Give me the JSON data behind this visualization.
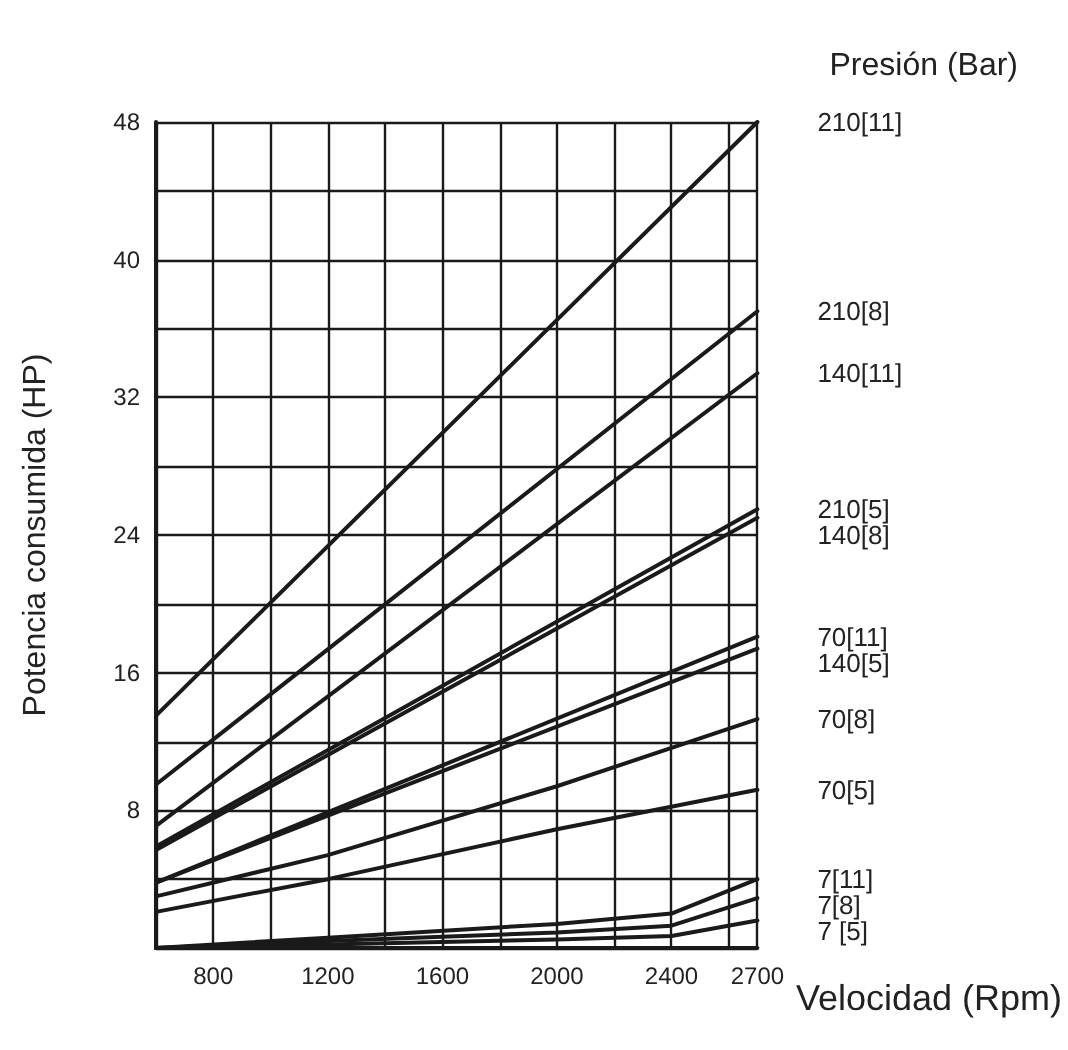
{
  "chart_data": {
    "type": "line",
    "xlabel": "Velocidad (Rpm)",
    "ylabel": "Potencia consumida (HP)",
    "legend_title": "Presión (Bar)",
    "xlim": [
      600,
      2700
    ],
    "ylim": [
      0,
      48
    ],
    "xticks": [
      {
        "value": 600,
        "label": null
      },
      800,
      {
        "value": 1000,
        "label": null
      },
      1200,
      {
        "value": 1400,
        "label": null
      },
      1600,
      {
        "value": 1800,
        "label": null
      },
      2000,
      {
        "value": 2200,
        "label": null
      },
      2400,
      {
        "value": 2600,
        "label": null
      },
      2700
    ],
    "yticks": [
      {
        "value": 0,
        "label": null
      },
      {
        "value": 4,
        "label": null
      },
      8,
      {
        "value": 12,
        "label": null
      },
      16,
      {
        "value": 20,
        "label": null
      },
      24,
      {
        "value": 28,
        "label": null
      },
      32,
      {
        "value": 36,
        "label": null
      },
      40,
      {
        "value": 44,
        "label": null
      },
      48
    ],
    "grid": true,
    "marker": "none",
    "line_style": "solid",
    "series": [
      {
        "name": "210[11]",
        "color": "#1a1a1a",
        "x": [
          600,
          2700
        ],
        "values": [
          13.5,
          48
        ]
      },
      {
        "name": "210[8]",
        "color": "#1a1a1a",
        "x": [
          600,
          2700
        ],
        "values": [
          9.5,
          37
        ]
      },
      {
        "name": "140[11]",
        "color": "#1a1a1a",
        "x": [
          600,
          2700
        ],
        "values": [
          7.1,
          33.4
        ]
      },
      {
        "name": "210[5]",
        "color": "#1a1a1a",
        "x": [
          600,
          2700
        ],
        "values": [
          5.9,
          25.5
        ]
      },
      {
        "name": "140[8]",
        "color": "#1a1a1a",
        "x": [
          600,
          2700
        ],
        "values": [
          5.7,
          25
        ]
      },
      {
        "name": "70[11]",
        "color": "#1a1a1a",
        "x": [
          600,
          2700
        ],
        "values": [
          3.8,
          18.1
        ]
      },
      {
        "name": "140[5]",
        "color": "#1a1a1a",
        "x": [
          600,
          2700
        ],
        "values": [
          3.8,
          17.4
        ]
      },
      {
        "name": "70[8]",
        "color": "#1a1a1a",
        "x": [
          600,
          1200,
          2000,
          2700
        ],
        "values": [
          3.0,
          5.4,
          9.4,
          13.3
        ]
      },
      {
        "name": "70[5]",
        "color": "#1a1a1a",
        "x": [
          600,
          1200,
          2000,
          2700
        ],
        "values": [
          2.1,
          4.0,
          6.9,
          9.2
        ]
      },
      {
        "name": "7[11]",
        "color": "#1a1a1a",
        "x": [
          600,
          1200,
          2000,
          2400,
          2700
        ],
        "values": [
          0,
          0.6,
          1.4,
          2.0,
          4.0
        ]
      },
      {
        "name": "7[8]",
        "color": "#1a1a1a",
        "x": [
          600,
          1200,
          2000,
          2400,
          2700
        ],
        "values": [
          0,
          0.4,
          0.9,
          1.3,
          2.9
        ]
      },
      {
        "name": "7 [5]",
        "color": "#1a1a1a",
        "x": [
          600,
          1200,
          2000,
          2400,
          2700
        ],
        "values": [
          0,
          0.2,
          0.5,
          0.7,
          1.6
        ]
      }
    ]
  }
}
